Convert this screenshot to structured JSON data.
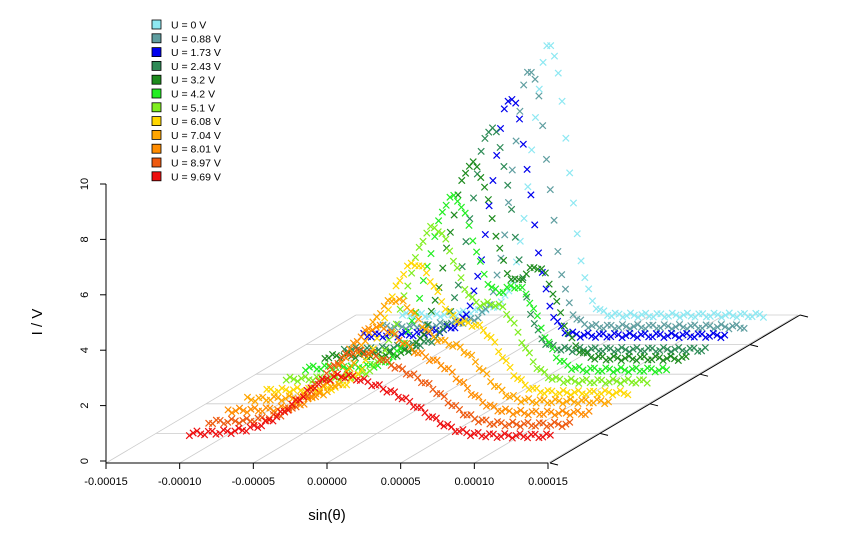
{
  "chart_data": {
    "type": "scatter",
    "style": "3d-waterfall",
    "title": "",
    "xlabel": "sin(θ)",
    "zlabel": "I / V",
    "xlim": [
      -0.00015,
      0.00015
    ],
    "zlim": [
      0,
      10
    ],
    "x_ticks": [
      "-0.00015",
      "-0.00010",
      "-0.00005",
      "0.00000",
      "0.00005",
      "0.00010",
      "0.00015"
    ],
    "z_ticks": [
      "0",
      "2",
      "4",
      "6",
      "8",
      "10"
    ],
    "marker": "x",
    "grid": true,
    "legend_position": "top-left",
    "series": [
      {
        "name": "U = 0 V",
        "color": "#8ee8f2",
        "peak_x": 0.0,
        "peak_height": 9.7,
        "baseline": 0.5,
        "width": 1.2e-05,
        "left_tail": true,
        "trough": false
      },
      {
        "name": "U = 0.88 V",
        "color": "#5f9ea0",
        "peak_x": 0.0,
        "peak_height": 9.2,
        "baseline": 0.5,
        "width": 1.2e-05,
        "left_tail": true,
        "trough": false
      },
      {
        "name": "U = 1.73 V",
        "color": "#0000ee",
        "peak_x": 0.0,
        "peak_height": 8.5,
        "baseline": 0.6,
        "width": 1.3e-05,
        "left_tail": true,
        "trough": false
      },
      {
        "name": "U = 2.43 V",
        "color": "#2e8b57",
        "peak_x": 0.0,
        "peak_height": 7.9,
        "baseline": 0.5,
        "width": 1.4e-05,
        "left_tail": true,
        "trough": false
      },
      {
        "name": "U = 3.2 V",
        "color": "#1e8b1e",
        "peak_x": 0.0,
        "peak_height": 7.0,
        "baseline": 0.6,
        "width": 1.6e-05,
        "left_tail": false,
        "trough": true
      },
      {
        "name": "U = 4.2 V",
        "color": "#22ee22",
        "peak_x": 0.0,
        "peak_height": 6.2,
        "baseline": 0.6,
        "width": 1.7e-05,
        "left_tail": false,
        "trough": true
      },
      {
        "name": "U = 5.1 V",
        "color": "#80ee20",
        "peak_x": 0.0,
        "peak_height": 5.5,
        "baseline": 0.6,
        "width": 1.8e-05,
        "left_tail": false,
        "trough": true
      },
      {
        "name": "U = 6.08 V",
        "color": "#ffd700",
        "peak_x": 0.0,
        "peak_height": 4.6,
        "baseline": 0.6,
        "width": 1.9e-05,
        "left_tail": false,
        "trough": true
      },
      {
        "name": "U = 7.04 V",
        "color": "#ffa500",
        "peak_x": 0.0,
        "peak_height": 3.6,
        "baseline": 0.7,
        "width": 2e-05,
        "left_tail": false,
        "trough": true
      },
      {
        "name": "U = 8.01 V",
        "color": "#ff8c00",
        "peak_x": 0.0,
        "peak_height": 3.0,
        "baseline": 0.7,
        "width": 2.2e-05,
        "left_tail": false,
        "trough": true
      },
      {
        "name": "U = 8.97 V",
        "color": "#ee5a10",
        "peak_x": 0.0,
        "peak_height": 2.5,
        "baseline": 0.7,
        "width": 2.4e-05,
        "left_tail": false,
        "trough": true
      },
      {
        "name": "U = 9.69 V",
        "color": "#ee1010",
        "peak_x": 0.0,
        "peak_height": 2.0,
        "baseline": 0.7,
        "width": 2.6e-05,
        "left_tail": false,
        "trough": true
      }
    ]
  }
}
